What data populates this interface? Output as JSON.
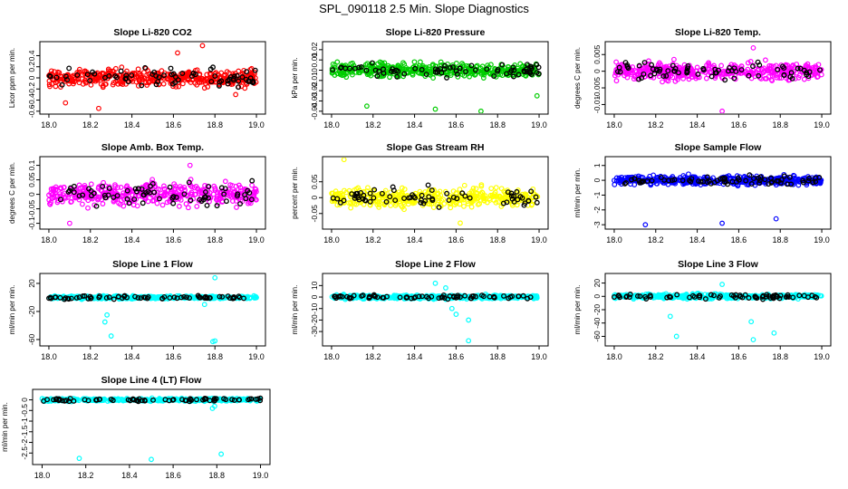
{
  "title": "SPL_090118  2.5 Min. Slope Diagnostics",
  "chart_data": [
    {
      "type": "scatter",
      "title": "Slope Li-820 CO2",
      "ylabel": "Licor ppm per min.",
      "color": "#ff0000",
      "xlim": [
        18.0,
        19.0
      ],
      "ylim": [
        -0.6,
        0.6
      ],
      "yticks": [
        -0.6,
        -0.4,
        -0.2,
        0.0,
        0.2,
        0.4
      ],
      "xticks": [
        18.0,
        18.2,
        18.4,
        18.6,
        18.8,
        19.0
      ],
      "series_spread": 0.18,
      "outliers": [
        [
          18.08,
          -0.45
        ],
        [
          18.24,
          -0.55
        ],
        [
          18.62,
          0.45
        ],
        [
          18.74,
          0.58
        ],
        [
          18.9,
          -0.3
        ]
      ]
    },
    {
      "type": "scatter",
      "title": "Slope Li-820 Pressure",
      "ylabel": "kPa per min.",
      "color": "#00cc00",
      "xlim": [
        18.0,
        19.0
      ],
      "ylim": [
        -0.04,
        0.025
      ],
      "yticks": [
        -0.04,
        -0.03,
        -0.02,
        -0.01,
        0.0,
        0.01,
        0.02
      ],
      "xticks": [
        18.0,
        18.2,
        18.4,
        18.6,
        18.8,
        19.0
      ],
      "series_spread": 0.008,
      "outliers": [
        [
          18.17,
          -0.035
        ],
        [
          18.5,
          -0.038
        ],
        [
          18.72,
          -0.04
        ],
        [
          18.99,
          -0.025
        ]
      ]
    },
    {
      "type": "scatter",
      "title": "Slope Li-820 Temp.",
      "ylabel": "degrees C per min.",
      "color": "#ff00ff",
      "xlim": [
        18.0,
        19.0
      ],
      "ylim": [
        -0.012,
        0.008
      ],
      "yticks": [
        -0.01,
        -0.005,
        0.0,
        0.005
      ],
      "xticks": [
        18.0,
        18.2,
        18.4,
        18.6,
        18.8,
        19.0
      ],
      "series_spread": 0.003,
      "outliers": [
        [
          18.52,
          -0.012
        ],
        [
          18.67,
          0.007
        ]
      ]
    },
    {
      "type": "scatter",
      "title": "Slope Amb. Box Temp.",
      "ylabel": "degrees C per min.",
      "color": "#ff00ff",
      "xlim": [
        18.0,
        19.0
      ],
      "ylim": [
        -0.11,
        0.12
      ],
      "yticks": [
        -0.1,
        -0.05,
        0.0,
        0.05,
        0.1
      ],
      "xticks": [
        18.0,
        18.2,
        18.4,
        18.6,
        18.8,
        19.0
      ],
      "series_spread": 0.045,
      "outliers": [
        [
          18.1,
          -0.1
        ],
        [
          18.68,
          0.1
        ]
      ]
    },
    {
      "type": "scatter",
      "title": "Slope Gas Stream RH",
      "ylabel": "percent per min.",
      "color": "#ffff00",
      "xlim": [
        18.0,
        19.0
      ],
      "ylim": [
        -0.09,
        0.12
      ],
      "yticks": [
        -0.05,
        0.0,
        0.05
      ],
      "xticks": [
        18.0,
        18.2,
        18.4,
        18.6,
        18.8,
        19.0
      ],
      "series_spread": 0.035,
      "outliers": [
        [
          18.06,
          0.12
        ],
        [
          18.62,
          -0.08
        ]
      ]
    },
    {
      "type": "scatter",
      "title": "Slope Sample Flow",
      "ylabel": "ml/min per min.",
      "color": "#0000ff",
      "xlim": [
        18.0,
        19.0
      ],
      "ylim": [
        -3.1,
        1.4
      ],
      "yticks": [
        -3,
        -2,
        -1,
        0,
        1
      ],
      "xticks": [
        18.0,
        18.2,
        18.4,
        18.6,
        18.8,
        19.0
      ],
      "series_spread": 0.35,
      "outliers": [
        [
          18.15,
          -3.0
        ],
        [
          18.52,
          -2.9
        ],
        [
          18.78,
          -2.6
        ]
      ]
    },
    {
      "type": "scatter",
      "title": "Slope Line 1 Flow",
      "ylabel": "ml/min per min.",
      "color": "#00ffff",
      "xlim": [
        18.0,
        19.0
      ],
      "ylim": [
        -65,
        30
      ],
      "yticks": [
        -60,
        -20,
        20
      ],
      "xticks": [
        18.0,
        18.2,
        18.4,
        18.6,
        18.8,
        19.0
      ],
      "series_spread": 2.5,
      "outliers": [
        [
          18.27,
          -35
        ],
        [
          18.28,
          -25
        ],
        [
          18.3,
          -55
        ],
        [
          18.79,
          -63
        ],
        [
          18.8,
          -62
        ],
        [
          18.8,
          28
        ],
        [
          18.75,
          -10
        ]
      ]
    },
    {
      "type": "scatter",
      "title": "Slope Line 2 Flow",
      "ylabel": "ml/min per min.",
      "color": "#00ffff",
      "xlim": [
        18.0,
        19.0
      ],
      "ylim": [
        -40,
        18
      ],
      "yticks": [
        -30,
        -20,
        -10,
        0,
        10
      ],
      "xticks": [
        18.0,
        18.2,
        18.4,
        18.6,
        18.8,
        19.0
      ],
      "series_spread": 2.0,
      "outliers": [
        [
          18.5,
          12
        ],
        [
          18.55,
          8
        ],
        [
          18.6,
          -15
        ],
        [
          18.66,
          -20
        ],
        [
          18.66,
          -38
        ],
        [
          18.58,
          -10
        ]
      ]
    },
    {
      "type": "scatter",
      "title": "Slope Line 3 Flow",
      "ylabel": "ml/min per min.",
      "color": "#00ffff",
      "xlim": [
        18.0,
        19.0
      ],
      "ylim": [
        -70,
        30
      ],
      "yticks": [
        -60,
        -40,
        -20,
        0,
        20
      ],
      "xticks": [
        18.0,
        18.2,
        18.4,
        18.6,
        18.8,
        19.0
      ],
      "series_spread": 4.0,
      "outliers": [
        [
          18.3,
          -60
        ],
        [
          18.27,
          -30
        ],
        [
          18.67,
          -65
        ],
        [
          18.77,
          -55
        ],
        [
          18.66,
          -38
        ],
        [
          18.52,
          18
        ]
      ]
    },
    {
      "type": "scatter",
      "title": "Slope Line 4 (LT) Flow",
      "ylabel": "ml/min per min.",
      "color": "#00ffff",
      "xlim": [
        18.0,
        19.0
      ],
      "ylim": [
        -2.9,
        0.35
      ],
      "yticks": [
        -2.5,
        -2.0,
        -1.5,
        -1.0,
        -0.5,
        0.0
      ],
      "xticks": [
        18.0,
        18.2,
        18.4,
        18.6,
        18.8,
        19.0
      ],
      "series_spread": 0.08,
      "outliers": [
        [
          18.17,
          -2.75
        ],
        [
          18.5,
          -2.8
        ],
        [
          18.82,
          -2.55
        ],
        [
          18.78,
          -0.4
        ],
        [
          18.79,
          -0.3
        ]
      ]
    }
  ]
}
